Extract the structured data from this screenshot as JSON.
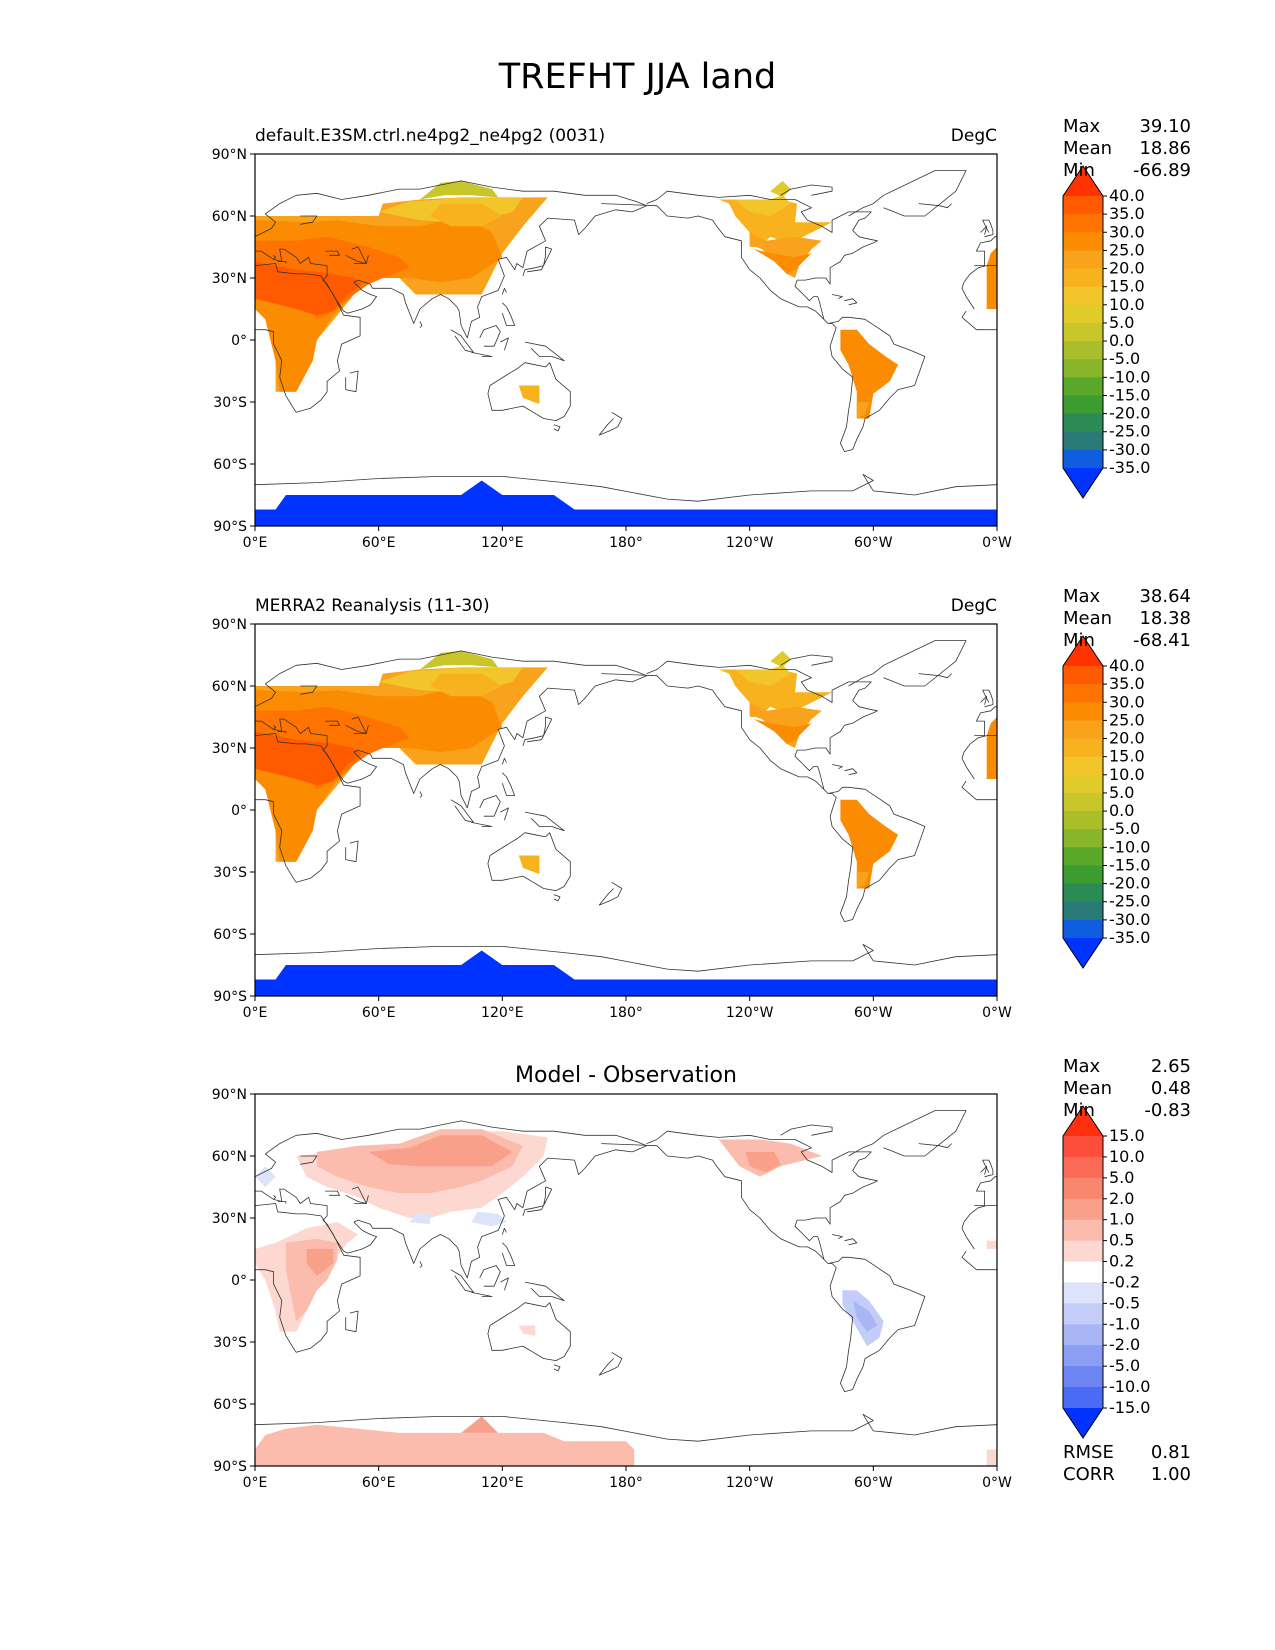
{
  "figure": {
    "title": "TREFHT JJA land"
  },
  "chart_data": [
    {
      "type": "contour-map",
      "panel": "model",
      "title_left": "default.E3SM.ctrl.ne4pg2_ne4pg2 (0031)",
      "title_center": "",
      "units": "DegC",
      "xticks": [
        "0°E",
        "60°E",
        "120°E",
        "180°",
        "120°W",
        "60°W",
        "0°W"
      ],
      "yticks": [
        "90°N",
        "60°N",
        "30°N",
        "0°",
        "30°S",
        "60°S",
        "90°S"
      ],
      "stats": {
        "max_label": "Max",
        "max": "39.10",
        "mean_label": "Mean",
        "mean": "18.86",
        "min_label": "Min",
        "min": "-66.89"
      },
      "colorbar": {
        "levels": [
          "40.0",
          "35.0",
          "30.0",
          "25.0",
          "20.0",
          "15.0",
          "10.0",
          "5.0",
          "0.0",
          "-5.0",
          "-10.0",
          "-15.0",
          "-20.0",
          "-25.0",
          "-30.0",
          "-35.0"
        ],
        "colors": [
          "#ff3300",
          "#ff5a00",
          "#ff7300",
          "#fb8b00",
          "#f9a21b",
          "#f7b21e",
          "#f2c62a",
          "#e0cb2a",
          "#c8c62a",
          "#a8bf2a",
          "#88b62a",
          "#5aa82a",
          "#3c9c30",
          "#2c8a55",
          "#2a7a78",
          "#0f5ee0",
          "#0033ff"
        ]
      }
    },
    {
      "type": "contour-map",
      "panel": "observation",
      "title_left": "MERRA2 Reanalysis (11-30)",
      "title_center": "",
      "units": "DegC",
      "xticks": [
        "0°E",
        "60°E",
        "120°E",
        "180°",
        "120°W",
        "60°W",
        "0°W"
      ],
      "yticks": [
        "90°N",
        "60°N",
        "30°N",
        "0°",
        "30°S",
        "60°S",
        "90°S"
      ],
      "stats": {
        "max_label": "Max",
        "max": "38.64",
        "mean_label": "Mean",
        "mean": "18.38",
        "min_label": "Min",
        "min": "-68.41"
      },
      "colorbar": {
        "levels": [
          "40.0",
          "35.0",
          "30.0",
          "25.0",
          "20.0",
          "15.0",
          "10.0",
          "5.0",
          "0.0",
          "-5.0",
          "-10.0",
          "-15.0",
          "-20.0",
          "-25.0",
          "-30.0",
          "-35.0"
        ],
        "colors": [
          "#ff3300",
          "#ff5a00",
          "#ff7300",
          "#fb8b00",
          "#f9a21b",
          "#f7b21e",
          "#f2c62a",
          "#e0cb2a",
          "#c8c62a",
          "#a8bf2a",
          "#88b62a",
          "#5aa82a",
          "#3c9c30",
          "#2c8a55",
          "#2a7a78",
          "#0f5ee0",
          "#0033ff"
        ]
      }
    },
    {
      "type": "contour-map",
      "panel": "difference",
      "title_left": "",
      "title_center": "Model - Observation",
      "units": "",
      "xticks": [
        "0°E",
        "60°E",
        "120°E",
        "180°",
        "120°W",
        "60°W",
        "0°W"
      ],
      "yticks": [
        "90°N",
        "60°N",
        "30°N",
        "0°",
        "30°S",
        "60°S",
        "90°S"
      ],
      "stats": {
        "max_label": "Max",
        "max": "2.65",
        "mean_label": "Mean",
        "mean": "0.48",
        "min_label": "Min",
        "min": "-0.83"
      },
      "colorbar": {
        "levels": [
          "15.0",
          "10.0",
          "5.0",
          "2.0",
          "1.0",
          "0.5",
          "0.2",
          "-0.2",
          "-0.5",
          "-1.0",
          "-2.0",
          "-5.0",
          "-10.0",
          "-15.0"
        ],
        "colors": [
          "#ff3010",
          "#fc4e3a",
          "#fa6a55",
          "#f9876f",
          "#f9a08b",
          "#fbbcae",
          "#fdd8d0",
          "#ffffff",
          "#dde3fb",
          "#c3cdf8",
          "#a8b6f5",
          "#8c9ef3",
          "#6c85f2",
          "#4a6bf3",
          "#0033ff"
        ]
      },
      "rmse_label": "RMSE",
      "rmse": "0.81",
      "corr_label": "CORR",
      "corr": "1.00"
    }
  ]
}
